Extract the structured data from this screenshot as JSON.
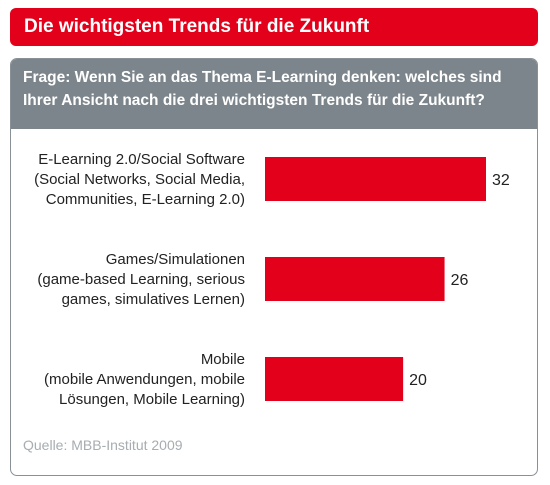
{
  "header": {
    "title": "Die wichtigsten Trends für die Zukunft"
  },
  "question": {
    "lines": [
      "Frage: Wenn Sie an das Thema E-Learning denken: welches sind",
      "Ihrer Ansicht nach die drei wichtigsten Trends für die Zukunft?"
    ]
  },
  "chart_data": {
    "type": "bar",
    "orientation": "horizontal",
    "categories": [
      [
        "E-Learning 2.0/Social Software",
        "(Social Networks, Social Media,",
        "Communities, E-Learning 2.0)"
      ],
      [
        "Games/Simulationen",
        "(game-based Learning, serious",
        "games, simulatives Lernen)"
      ],
      [
        "Mobile",
        "(mobile Anwendungen, mobile",
        "Lösungen, Mobile Learning)"
      ]
    ],
    "values": [
      32,
      26,
      20
    ],
    "data_labels": [
      "32",
      "26",
      "20"
    ],
    "bar_color": "#e2001a",
    "xlim": [
      0,
      32
    ],
    "grid": false,
    "legend": "none"
  },
  "source": "Quelle: MBB-Institut 2009",
  "colors": {
    "accent": "#e2001a",
    "header_gray": "#7c858b",
    "border": "#8a9196",
    "source_text": "#a7adb1"
  }
}
